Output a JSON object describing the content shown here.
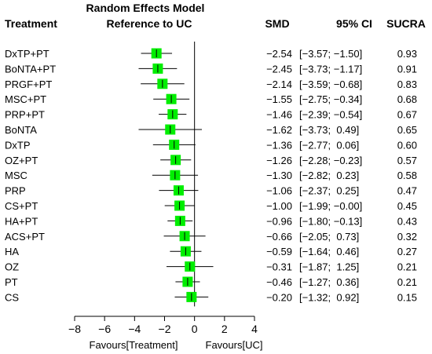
{
  "chart_data": {
    "type": "forest",
    "title_line1": "Random Effects Model",
    "title_line2": "Reference to UC",
    "headers": {
      "treatment": "Treatment",
      "smd": "SMD",
      "ci": "95% CI",
      "sucra": "SUCRA"
    },
    "xlim": [
      -8,
      4
    ],
    "xticks": [
      "−8",
      "−6",
      "−4",
      "−2",
      "0",
      "2",
      "4"
    ],
    "xtick_values": [
      -8,
      -6,
      -4,
      -2,
      0,
      2,
      4
    ],
    "reference_line": 0,
    "xlabel_left": "Favours[Treatment]",
    "xlabel_right": "Favours[UC]",
    "marker_color": "#00ee00",
    "rows": [
      {
        "treatment": "DxTP+PT",
        "smd": -2.54,
        "lower": -3.57,
        "upper": -1.5,
        "smd_text": "−2.54",
        "ci_text": "[−3.57; −1.50]",
        "sucra": "0.93"
      },
      {
        "treatment": "BoNTA+PT",
        "smd": -2.45,
        "lower": -3.73,
        "upper": -1.17,
        "smd_text": "−2.45",
        "ci_text": "[−3.73; −1.17]",
        "sucra": "0.91"
      },
      {
        "treatment": "PRGF+PT",
        "smd": -2.14,
        "lower": -3.59,
        "upper": -0.68,
        "smd_text": "−2.14",
        "ci_text": "[−3.59; −0.68]",
        "sucra": "0.83"
      },
      {
        "treatment": "MSC+PT",
        "smd": -1.55,
        "lower": -2.75,
        "upper": -0.34,
        "smd_text": "−1.55",
        "ci_text": "[−2.75; −0.34]",
        "sucra": "0.68"
      },
      {
        "treatment": "PRP+PT",
        "smd": -1.46,
        "lower": -2.39,
        "upper": -0.54,
        "smd_text": "−1.46",
        "ci_text": "[−2.39; −0.54]",
        "sucra": "0.67"
      },
      {
        "treatment": "BoNTA",
        "smd": -1.62,
        "lower": -3.73,
        "upper": 0.49,
        "smd_text": "−1.62",
        "ci_text": "[−3.73;  0.49]",
        "sucra": "0.65"
      },
      {
        "treatment": "DxTP",
        "smd": -1.36,
        "lower": -2.77,
        "upper": 0.06,
        "smd_text": "−1.36",
        "ci_text": "[−2.77;  0.06]",
        "sucra": "0.60"
      },
      {
        "treatment": "OZ+PT",
        "smd": -1.26,
        "lower": -2.28,
        "upper": -0.23,
        "smd_text": "−1.26",
        "ci_text": "[−2.28; −0.23]",
        "sucra": "0.57"
      },
      {
        "treatment": "MSC",
        "smd": -1.3,
        "lower": -2.82,
        "upper": 0.23,
        "smd_text": "−1.30",
        "ci_text": "[−2.82;  0.23]",
        "sucra": "0.58"
      },
      {
        "treatment": "PRP",
        "smd": -1.06,
        "lower": -2.37,
        "upper": 0.25,
        "smd_text": "−1.06",
        "ci_text": "[−2.37;  0.25]",
        "sucra": "0.47"
      },
      {
        "treatment": "CS+PT",
        "smd": -1.0,
        "lower": -1.99,
        "upper": -0.0,
        "smd_text": "−1.00",
        "ci_text": "[−1.99; −0.00]",
        "sucra": "0.45"
      },
      {
        "treatment": "HA+PT",
        "smd": -0.96,
        "lower": -1.8,
        "upper": -0.13,
        "smd_text": "−0.96",
        "ci_text": "[−1.80; −0.13]",
        "sucra": "0.43"
      },
      {
        "treatment": "ACS+PT",
        "smd": -0.66,
        "lower": -2.05,
        "upper": 0.73,
        "smd_text": "−0.66",
        "ci_text": "[−2.05;  0.73]",
        "sucra": "0.32"
      },
      {
        "treatment": "HA",
        "smd": -0.59,
        "lower": -1.64,
        "upper": 0.46,
        "smd_text": "−0.59",
        "ci_text": "[−1.64;  0.46]",
        "sucra": "0.27"
      },
      {
        "treatment": "OZ",
        "smd": -0.31,
        "lower": -1.87,
        "upper": 1.25,
        "smd_text": "−0.31",
        "ci_text": "[−1.87;  1.25]",
        "sucra": "0.21"
      },
      {
        "treatment": "PT",
        "smd": -0.46,
        "lower": -1.27,
        "upper": 0.36,
        "smd_text": "−0.46",
        "ci_text": "[−1.27;  0.36]",
        "sucra": "0.21"
      },
      {
        "treatment": "CS",
        "smd": -0.2,
        "lower": -1.32,
        "upper": 0.92,
        "smd_text": "−0.20",
        "ci_text": "[−1.32;  0.92]",
        "sucra": "0.15"
      }
    ]
  }
}
